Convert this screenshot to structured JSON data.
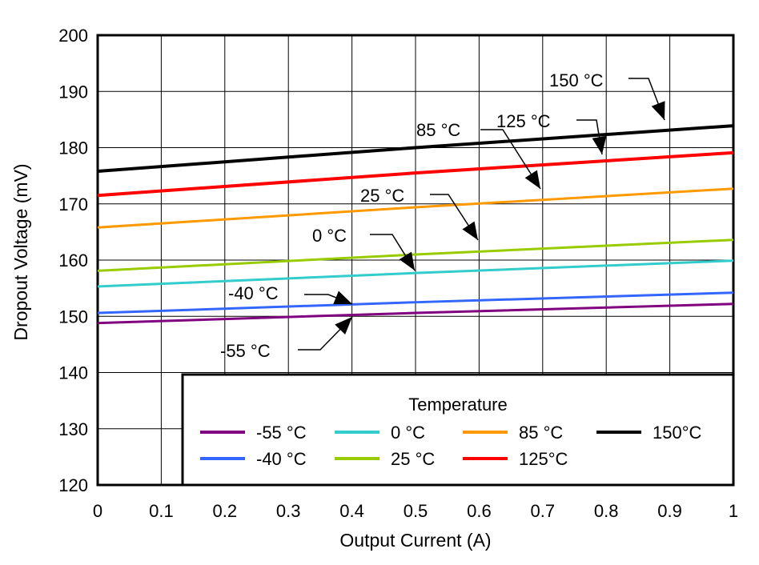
{
  "chart_data": {
    "type": "line",
    "title": "",
    "xlabel": "Output Current (A)",
    "ylabel": "Dropout Voltage (mV)",
    "xlim": [
      0,
      1
    ],
    "ylim": [
      120,
      200
    ],
    "x_ticks": [
      "0",
      "0.1",
      "0.2",
      "0.3",
      "0.4",
      "0.5",
      "0.6",
      "0.7",
      "0.8",
      "0.9",
      "1"
    ],
    "y_ticks": [
      "120",
      "130",
      "140",
      "150",
      "160",
      "170",
      "180",
      "190",
      "200"
    ],
    "grid": true,
    "legend": {
      "title": "Temperature",
      "placement": "bottom-right",
      "entries": [
        "-55 °C",
        "-40 °C",
        "0 °C",
        "25 °C",
        "85 °C",
        "125°C",
        "150°C"
      ]
    },
    "series": [
      {
        "name": "-55 °C",
        "color": "#800080",
        "x": [
          0,
          0.5,
          1
        ],
        "y": [
          148.8,
          150.6,
          152.2
        ]
      },
      {
        "name": "-40 °C",
        "color": "#3366ff",
        "x": [
          0,
          0.5,
          1
        ],
        "y": [
          150.6,
          152.5,
          154.2
        ]
      },
      {
        "name": "0 °C",
        "color": "#33cccc",
        "x": [
          0,
          0.5,
          1
        ],
        "y": [
          155.3,
          157.7,
          159.9
        ]
      },
      {
        "name": "25 °C",
        "color": "#99cc00",
        "x": [
          0,
          0.5,
          1
        ],
        "y": [
          158.1,
          161.0,
          163.6
        ]
      },
      {
        "name": "85 °C",
        "color": "#ff9900",
        "x": [
          0,
          0.5,
          1
        ],
        "y": [
          165.8,
          169.4,
          172.7
        ]
      },
      {
        "name": "125°C",
        "color": "#ff0000",
        "x": [
          0,
          0.5,
          1
        ],
        "y": [
          171.5,
          175.5,
          179.1
        ]
      },
      {
        "name": "150°C",
        "color": "#000000",
        "x": [
          0,
          0.5,
          1
        ],
        "y": [
          175.8,
          180.0,
          183.9
        ]
      }
    ],
    "annotations": [
      "150 °C",
      "125 °C",
      "85 °C",
      "25 °C",
      "0 °C",
      "-40 °C",
      "-55 °C"
    ]
  }
}
